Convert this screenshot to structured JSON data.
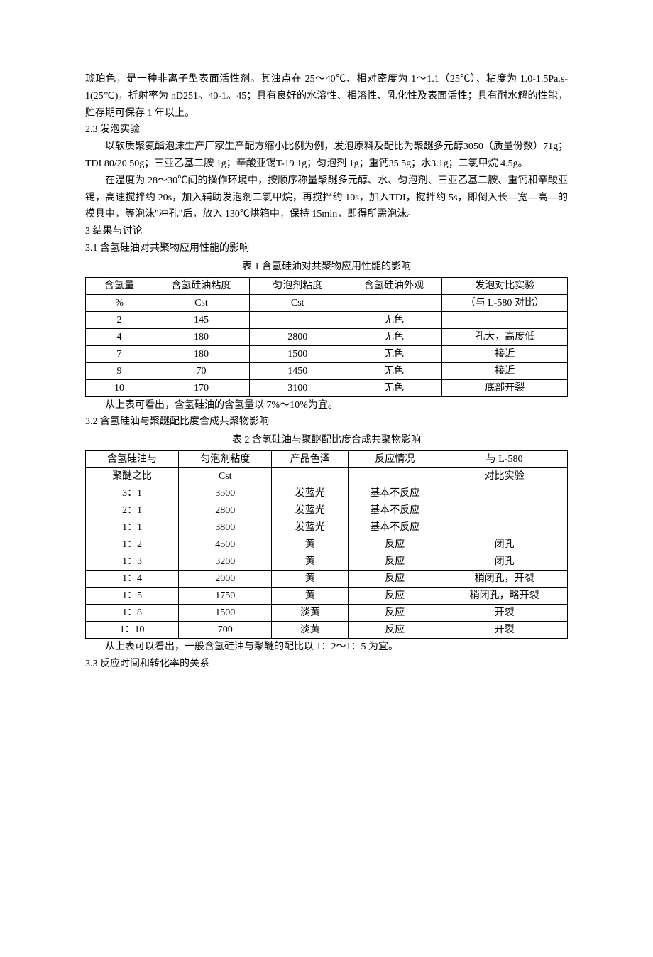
{
  "para1": "琥珀色，是一种非离子型表面活性剂。其浊点在 25～40℃、相对密度为 1～1.1（25℃）、粘度为 1.0-1.5Pa.s-1(25℃)，折射率为 nD251。40-1。45；具有良好的水溶性、相溶性、乳化性及表面活性；具有耐水解的性能，贮存期可保存 1 年以上。",
  "sec23_head": "2.3  发泡实验",
  "sec23_p1": "以软质聚氨酯泡沫生产厂家生产配方缩小比例为例，发泡原料及配比为聚醚多元醇3050（质量份数）71g；TDI 80/20 50g；三亚乙基二胺  1g；辛酸亚锡T-19 1g；匀泡剂  1g；重钙35.5g；水3.1g；二氯甲烷  4.5g。",
  "sec23_p2": "在温度为 28～30℃间的操作环境中，按顺序称量聚醚多元醇、水、匀泡剂、三亚乙基二胺、重钙和辛酸亚锡，高速搅拌约 20s，加入辅助发泡剂二氯甲烷，再搅拌约 10s，加入TDI，搅拌约 5s，即倒入长—宽—高—的模具中，等泡沫\"冲孔\"后，放入 130℃烘箱中，保持 15min，即得所需泡沫。",
  "sec3_head": "3    结果与讨论",
  "sec31_head": "3.1  含氢硅油对共聚物应用性能的影响",
  "table1": {
    "caption": "表 1        含氢硅油对共聚物应用性能的影响",
    "headers_row1": [
      "含氢量",
      "含氢硅油粘度",
      "匀泡剂粘度",
      "含氢硅油外观",
      "发泡对比实验"
    ],
    "headers_row2": [
      "%",
      "Cst",
      "Cst",
      "",
      "（与 L-580 对比）"
    ],
    "rows": [
      [
        "2",
        "145",
        "",
        "无色",
        ""
      ],
      [
        "4",
        "180",
        "2800",
        "无色",
        "孔大，高度低"
      ],
      [
        "7",
        "180",
        "1500",
        "无色",
        "接近"
      ],
      [
        "9",
        "70",
        "1450",
        "无色",
        "接近"
      ],
      [
        "10",
        "170",
        "3100",
        "无色",
        "底部开裂"
      ]
    ]
  },
  "table1_note": "从上表可看出，含氢硅油的含氢量以 7%～10%为宜。",
  "sec32_head": "3.2  含氢硅油与聚醚配比度合成共聚物影响",
  "table2": {
    "caption": "表 2        含氢硅油与聚醚配比度合成共聚物影响",
    "headers_row1": [
      "含氢硅油与",
      "匀泡剂粘度",
      "产品色泽",
      "反应情况",
      "与 L-580"
    ],
    "headers_row2": [
      "聚醚之比",
      "Cst",
      "",
      "",
      "对比实验"
    ],
    "rows": [
      [
        "3：1",
        "3500",
        "发蓝光",
        "基本不反应",
        ""
      ],
      [
        "2：1",
        "2800",
        "发蓝光",
        "基本不反应",
        ""
      ],
      [
        "1：1",
        "3800",
        "发蓝光",
        "基本不反应",
        ""
      ],
      [
        "1：2",
        "4500",
        "黄",
        "反应",
        "闭孔"
      ],
      [
        "1：3",
        "3200",
        "黄",
        "反应",
        "闭孔"
      ],
      [
        "1：4",
        "2000",
        "黄",
        "反应",
        "稍闭孔，开裂"
      ],
      [
        "1：5",
        "1750",
        "黄",
        "反应",
        "稍闭孔，略开裂"
      ],
      [
        "1：8",
        "1500",
        "淡黄",
        "反应",
        "开裂"
      ],
      [
        "1：10",
        "700",
        "淡黄",
        "反应",
        "开裂"
      ]
    ]
  },
  "table2_note": "从上表可以看出，一般含氢硅油与聚醚的配比以 1：2～1：5 为宜。",
  "sec33_head": "3.3  反应时间和转化率的关系"
}
